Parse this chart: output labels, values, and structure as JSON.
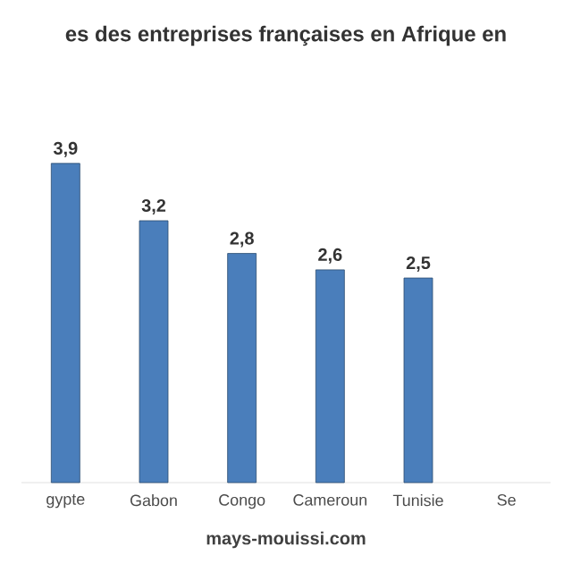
{
  "chart_data": {
    "type": "bar",
    "title": "es des entreprises françaises en Afrique en",
    "categories": [
      "gypte",
      "Gabon",
      "Congo",
      "Cameroun",
      "Tunisie",
      "Se"
    ],
    "values": [
      3.9,
      3.2,
      2.8,
      2.6,
      2.5,
      null
    ],
    "value_labels": [
      "3,9",
      "3,2",
      "2,8",
      "2,6",
      "2,5",
      null
    ],
    "color": "#4a7ebb",
    "annotations": [
      "mays-mouissi.com"
    ]
  }
}
